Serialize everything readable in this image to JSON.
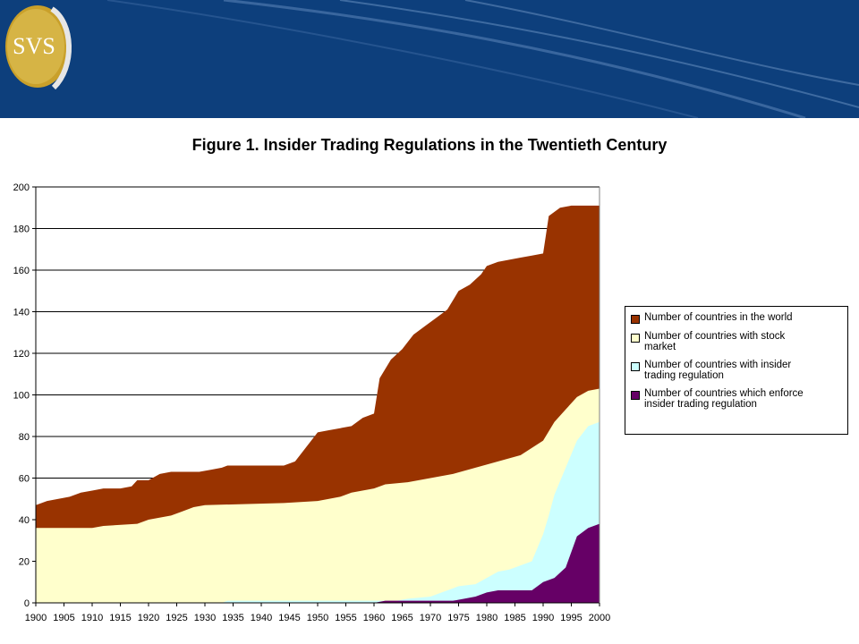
{
  "logo": {
    "text": "SVS"
  },
  "colors": {
    "header": "#0d3f7c",
    "world": "#993300",
    "stock": "#ffffcc",
    "insider": "#ccffff",
    "enforce": "#660066"
  },
  "chart_data": {
    "type": "area",
    "title": "Figure 1. Insider Trading Regulations in the Twentieth Century",
    "xlabel": "",
    "ylabel": "",
    "x_ticks": [
      "1900",
      "1905",
      "1910",
      "1915",
      "1920",
      "1925",
      "1930",
      "1935",
      "1940",
      "1945",
      "1950",
      "1955",
      "1960",
      "1965",
      "1970",
      "1975",
      "1980",
      "1985",
      "1990",
      "1995",
      "2000"
    ],
    "y_ticks": [
      "0",
      "20",
      "40",
      "60",
      "80",
      "100",
      "120",
      "140",
      "160",
      "180",
      "200"
    ],
    "xlim": [
      1900,
      2000
    ],
    "ylim": [
      0,
      200
    ],
    "grid": "horizontal",
    "legend_position": "right",
    "series": [
      {
        "name": "Number of countries in the world",
        "color_key": "world",
        "points": [
          [
            1900,
            47
          ],
          [
            1902,
            49
          ],
          [
            1904,
            50
          ],
          [
            1906,
            51
          ],
          [
            1908,
            53
          ],
          [
            1910,
            54
          ],
          [
            1912,
            55
          ],
          [
            1915,
            55
          ],
          [
            1917,
            56
          ],
          [
            1918,
            59
          ],
          [
            1920,
            59
          ],
          [
            1922,
            62
          ],
          [
            1924,
            63
          ],
          [
            1929,
            63
          ],
          [
            1931,
            64
          ],
          [
            1933,
            65
          ],
          [
            1934,
            66
          ],
          [
            1944,
            66
          ],
          [
            1946,
            68
          ],
          [
            1948,
            75
          ],
          [
            1950,
            82
          ],
          [
            1952,
            83
          ],
          [
            1954,
            84
          ],
          [
            1956,
            85
          ],
          [
            1958,
            89
          ],
          [
            1960,
            91
          ],
          [
            1961,
            108
          ],
          [
            1963,
            117
          ],
          [
            1965,
            122
          ],
          [
            1967,
            129
          ],
          [
            1969,
            133
          ],
          [
            1971,
            137
          ],
          [
            1973,
            141
          ],
          [
            1975,
            150
          ],
          [
            1977,
            153
          ],
          [
            1979,
            158
          ],
          [
            1980,
            162
          ],
          [
            1982,
            164
          ],
          [
            1984,
            165
          ],
          [
            1986,
            166
          ],
          [
            1988,
            167
          ],
          [
            1990,
            168
          ],
          [
            1991,
            186
          ],
          [
            1993,
            190
          ],
          [
            1995,
            191
          ],
          [
            2000,
            191
          ]
        ]
      },
      {
        "name": "Number of countries with  stock market",
        "color_key": "stock",
        "points": [
          [
            1900,
            36
          ],
          [
            1910,
            36
          ],
          [
            1912,
            37
          ],
          [
            1918,
            38
          ],
          [
            1920,
            40
          ],
          [
            1924,
            42
          ],
          [
            1926,
            44
          ],
          [
            1928,
            46
          ],
          [
            1930,
            47
          ],
          [
            1944,
            48
          ],
          [
            1950,
            49
          ],
          [
            1954,
            51
          ],
          [
            1956,
            53
          ],
          [
            1960,
            55
          ],
          [
            1962,
            57
          ],
          [
            1966,
            58
          ],
          [
            1970,
            60
          ],
          [
            1974,
            62
          ],
          [
            1978,
            65
          ],
          [
            1982,
            68
          ],
          [
            1986,
            71
          ],
          [
            1990,
            78
          ],
          [
            1992,
            87
          ],
          [
            1994,
            93
          ],
          [
            1996,
            99
          ],
          [
            1998,
            102
          ],
          [
            2000,
            103
          ]
        ]
      },
      {
        "name": "Number of countries with insider trading regulation",
        "color_key": "insider",
        "points": [
          [
            1900,
            0
          ],
          [
            1933,
            0
          ],
          [
            1934,
            1
          ],
          [
            1964,
            1
          ],
          [
            1966,
            2
          ],
          [
            1970,
            3
          ],
          [
            1972,
            5
          ],
          [
            1975,
            8
          ],
          [
            1978,
            9
          ],
          [
            1980,
            12
          ],
          [
            1982,
            15
          ],
          [
            1984,
            16
          ],
          [
            1986,
            18
          ],
          [
            1988,
            20
          ],
          [
            1990,
            33
          ],
          [
            1991,
            42
          ],
          [
            1992,
            52
          ],
          [
            1994,
            65
          ],
          [
            1996,
            78
          ],
          [
            1998,
            85
          ],
          [
            2000,
            87
          ]
        ]
      },
      {
        "name": "Number of countries which enforce insider trading regulation",
        "color_key": "enforce",
        "points": [
          [
            1900,
            0
          ],
          [
            1960,
            0
          ],
          [
            1962,
            1
          ],
          [
            1974,
            1
          ],
          [
            1976,
            2
          ],
          [
            1978,
            3
          ],
          [
            1980,
            5
          ],
          [
            1982,
            6
          ],
          [
            1988,
            6
          ],
          [
            1990,
            10
          ],
          [
            1992,
            12
          ],
          [
            1994,
            17
          ],
          [
            1996,
            32
          ],
          [
            1998,
            36
          ],
          [
            2000,
            38
          ]
        ]
      }
    ]
  },
  "legend": {
    "items": [
      {
        "label": "Number of countries in the world",
        "color_key": "world"
      },
      {
        "label": "Number of countries with  stock\nmarket",
        "color_key": "stock"
      },
      {
        "label": "Number of countries with insider\ntrading regulation",
        "color_key": "insider"
      },
      {
        "label": "Number of countries which enforce\ninsider trading regulation",
        "color_key": "enforce"
      }
    ]
  }
}
